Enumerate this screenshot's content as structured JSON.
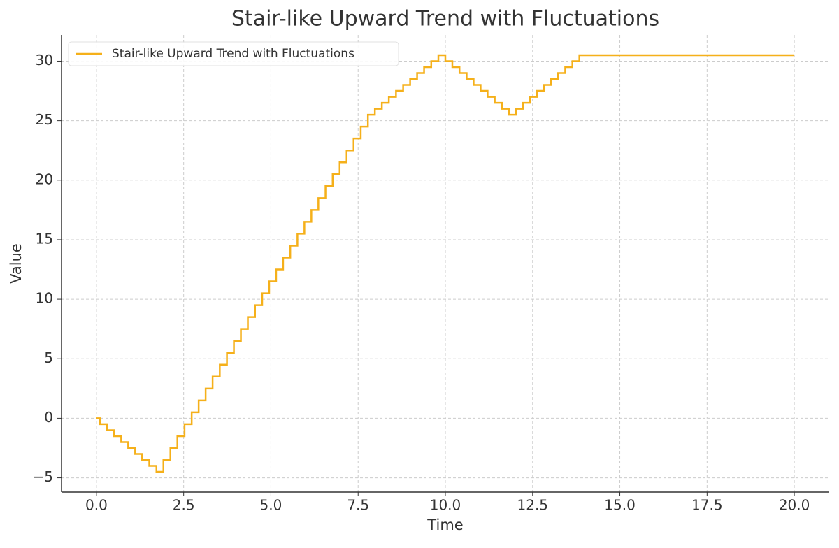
{
  "chart_data": {
    "type": "line",
    "step": "mid",
    "title": "Stair-like Upward Trend with Fluctuations",
    "x_label": "Time",
    "y_label": "Value",
    "x": [
      0,
      0.2,
      0.4,
      0.61,
      0.81,
      1.01,
      1.21,
      1.41,
      1.62,
      1.82,
      2.02,
      2.22,
      2.42,
      2.63,
      2.83,
      3.03,
      3.23,
      3.43,
      3.64,
      3.84,
      4.04,
      4.24,
      4.44,
      4.65,
      4.85,
      5.05,
      5.25,
      5.45,
      5.66,
      5.86,
      6.06,
      6.26,
      6.46,
      6.67,
      6.87,
      7.07,
      7.27,
      7.47,
      7.68,
      7.88,
      8.08,
      8.28,
      8.48,
      8.69,
      8.89,
      9.09,
      9.29,
      9.49,
      9.7,
      9.9,
      10.1,
      10.3,
      10.51,
      10.71,
      10.91,
      11.11,
      11.31,
      11.52,
      11.72,
      11.92,
      12.12,
      12.32,
      12.53,
      12.73,
      12.93,
      13.13,
      13.33,
      13.54,
      13.74,
      13.94,
      14.14,
      14.34,
      14.55,
      14.75,
      14.95,
      15.15,
      15.35,
      15.56,
      15.76,
      15.96,
      16.16,
      16.36,
      16.57,
      16.77,
      16.97,
      17.17,
      17.37,
      17.58,
      17.78,
      17.98,
      18.18,
      18.38,
      18.59,
      18.79,
      18.99,
      19.19,
      19.39,
      19.6,
      19.8,
      20
    ],
    "series": [
      {
        "name": "Stair-like Upward Trend with Fluctuations",
        "color": "#f5b01a",
        "values": [
          0,
          -0.5,
          -1,
          -1.5,
          -2,
          -2.5,
          -3,
          -3.5,
          -4,
          -4.5,
          -3.5,
          -2.5,
          -1.5,
          -0.5,
          0.5,
          1.5,
          2.5,
          3.5,
          4.5,
          5.5,
          6.5,
          7.5,
          8.5,
          9.5,
          10.5,
          11.5,
          12.5,
          13.5,
          14.5,
          15.5,
          16.5,
          17.5,
          18.5,
          19.5,
          20.5,
          21.5,
          22.5,
          23.5,
          24.5,
          25.5,
          26,
          26.5,
          27,
          27.5,
          28,
          28.5,
          29,
          29.5,
          30,
          30.5,
          30,
          29.5,
          29,
          28.5,
          28,
          27.5,
          27,
          26.5,
          26,
          25.5,
          26,
          26.5,
          27,
          27.5,
          28,
          28.5,
          29,
          29.5,
          30,
          30.5,
          30.5,
          30.5,
          30.5,
          30.5,
          30.5,
          30.5,
          30.5,
          30.5,
          30.5,
          30.5,
          30.5,
          30.5,
          30.5,
          30.5,
          30.5,
          30.5,
          30.5,
          30.5,
          30.5,
          30.5,
          30.5,
          30.5,
          30.5,
          30.5,
          30.5,
          30.5,
          30.5,
          30.5,
          30.5,
          30.5
        ]
      }
    ],
    "xlim": [
      -1.0,
      21.0
    ],
    "ylim": [
      -6.2,
      32.2
    ],
    "xticks": [
      {
        "value": 0,
        "label": "0.0"
      },
      {
        "value": 2.5,
        "label": "2.5"
      },
      {
        "value": 5,
        "label": "5.0"
      },
      {
        "value": 7.5,
        "label": "7.5"
      },
      {
        "value": 10,
        "label": "10.0"
      },
      {
        "value": 12.5,
        "label": "12.5"
      },
      {
        "value": 15,
        "label": "15.0"
      },
      {
        "value": 17.5,
        "label": "17.5"
      },
      {
        "value": 20,
        "label": "20.0"
      }
    ],
    "yticks": [
      {
        "value": -5,
        "label": "−5"
      },
      0,
      5,
      10,
      15,
      20,
      25,
      30
    ],
    "grid": true,
    "legend": "upper-left"
  }
}
